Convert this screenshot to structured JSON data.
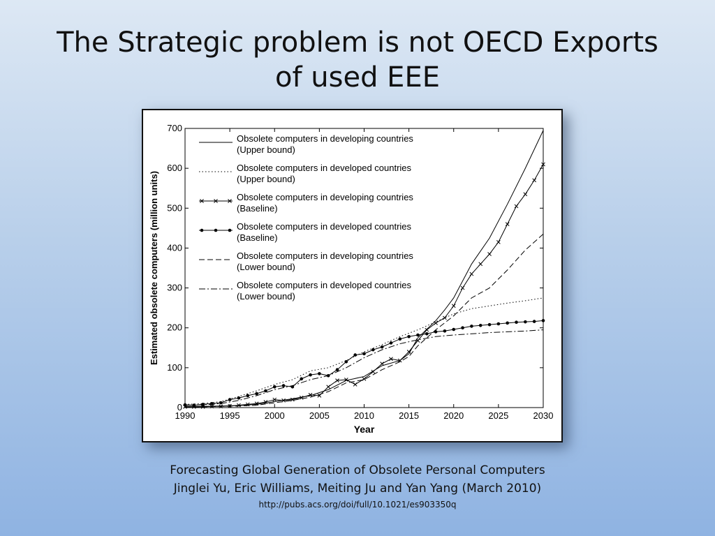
{
  "slide": {
    "title_line1": "The Strategic problem is not OECD Exports",
    "title_line2": "of used EEE",
    "caption_line1": "Forecasting Global Generation of Obsolete Personal Computers",
    "caption_line2": "Jinglei Yu, Eric Williams, Meiting Ju and Yan Yang (March 2010)",
    "caption_link": "http://pubs.acs.org/doi/full/10.1021/es903350q"
  },
  "chart_data": {
    "type": "line",
    "xlabel": "Year",
    "ylabel": "Estimated obsolete computers (million units)",
    "xlim": [
      1990,
      2030
    ],
    "ylim": [
      0,
      700
    ],
    "xticks": [
      1990,
      1995,
      2000,
      2005,
      2010,
      2015,
      2020,
      2025,
      2030
    ],
    "yticks": [
      0,
      100,
      200,
      300,
      400,
      500,
      600,
      700
    ],
    "legend_position": "top-left",
    "series": [
      {
        "name_line1": "Obsolete computers in developing countries",
        "name_line2": "(Upper bound)",
        "style": "solid",
        "marker": "none",
        "x": [
          1990,
          1992,
          1994,
          1996,
          1998,
          2000,
          2002,
          2004,
          2006,
          2008,
          2010,
          2012,
          2014,
          2015,
          2016,
          2018,
          2019,
          2020,
          2022,
          2024,
          2026,
          2028,
          2030
        ],
        "y": [
          3,
          3,
          4,
          5,
          8,
          15,
          22,
          30,
          45,
          68,
          78,
          105,
          118,
          135,
          175,
          218,
          245,
          275,
          360,
          425,
          510,
          600,
          695
        ]
      },
      {
        "name_line1": "Obsolete computers in developed countries",
        "name_line2": "(Upper bound)",
        "style": "dotted",
        "marker": "none",
        "x": [
          1990,
          1992,
          1994,
          1996,
          1998,
          2000,
          2002,
          2004,
          2006,
          2008,
          2010,
          2012,
          2014,
          2016,
          2018,
          2020,
          2022,
          2024,
          2026,
          2028,
          2030
        ],
        "y": [
          8,
          10,
          15,
          28,
          42,
          58,
          70,
          92,
          100,
          118,
          140,
          158,
          178,
          195,
          215,
          235,
          248,
          255,
          262,
          268,
          275
        ]
      },
      {
        "name_line1": "Obsolete computers in developing countries",
        "name_line2": "(Baseline)",
        "style": "solid",
        "marker": "x",
        "x": [
          1990,
          1991,
          1992,
          1993,
          1994,
          1995,
          1996,
          1997,
          1998,
          1999,
          2000,
          2001,
          2002,
          2003,
          2004,
          2005,
          2006,
          2007,
          2008,
          2009,
          2010,
          2011,
          2012,
          2013,
          2014,
          2015,
          2016,
          2017,
          2018,
          2019,
          2020,
          2021,
          2022,
          2023,
          2024,
          2025,
          2026,
          2027,
          2028,
          2029,
          2030
        ],
        "y": [
          2,
          2,
          2,
          3,
          3,
          4,
          6,
          8,
          10,
          14,
          20,
          18,
          20,
          25,
          32,
          30,
          52,
          68,
          70,
          58,
          72,
          90,
          110,
          122,
          118,
          140,
          168,
          195,
          212,
          225,
          255,
          300,
          335,
          360,
          385,
          415,
          460,
          505,
          535,
          570,
          610
        ]
      },
      {
        "name_line1": "Obsolete computers in developed countries",
        "name_line2": "(Baseline)",
        "style": "solid",
        "marker": "dot",
        "x": [
          1990,
          1991,
          1992,
          1993,
          1994,
          1995,
          1996,
          1997,
          1998,
          1999,
          2000,
          2001,
          2002,
          2003,
          2004,
          2005,
          2006,
          2007,
          2008,
          2009,
          2010,
          2011,
          2012,
          2013,
          2014,
          2015,
          2016,
          2017,
          2018,
          2019,
          2020,
          2021,
          2022,
          2023,
          2024,
          2025,
          2026,
          2027,
          2028,
          2029,
          2030
        ],
        "y": [
          7,
          6,
          8,
          10,
          12,
          20,
          24,
          30,
          35,
          42,
          52,
          55,
          52,
          72,
          82,
          85,
          80,
          95,
          115,
          132,
          135,
          145,
          152,
          162,
          172,
          178,
          182,
          185,
          190,
          192,
          196,
          200,
          204,
          206,
          208,
          210,
          212,
          214,
          215,
          216,
          218
        ]
      },
      {
        "name_line1": "Obsolete computers in developing countries",
        "name_line2": "(Lower bound)",
        "style": "dashed",
        "marker": "none",
        "x": [
          1990,
          1992,
          1994,
          1996,
          1998,
          2000,
          2002,
          2004,
          2006,
          2008,
          2010,
          2012,
          2014,
          2015,
          2016,
          2018,
          2020,
          2022,
          2024,
          2026,
          2028,
          2030
        ],
        "y": [
          2,
          2,
          3,
          4,
          6,
          12,
          18,
          26,
          40,
          62,
          70,
          95,
          115,
          128,
          155,
          195,
          230,
          275,
          300,
          345,
          395,
          435
        ]
      },
      {
        "name_line1": "Obsolete computers in developed countries",
        "name_line2": "(Lower bound)",
        "style": "dashdot",
        "marker": "none",
        "x": [
          1990,
          1992,
          1994,
          1996,
          1998,
          2000,
          2002,
          2004,
          2006,
          2008,
          2010,
          2012,
          2014,
          2016,
          2018,
          2020,
          2022,
          2024,
          2026,
          2028,
          2030
        ],
        "y": [
          6,
          7,
          10,
          18,
          30,
          45,
          55,
          70,
          80,
          100,
          125,
          145,
          160,
          170,
          178,
          182,
          185,
          188,
          190,
          192,
          195
        ]
      }
    ]
  }
}
